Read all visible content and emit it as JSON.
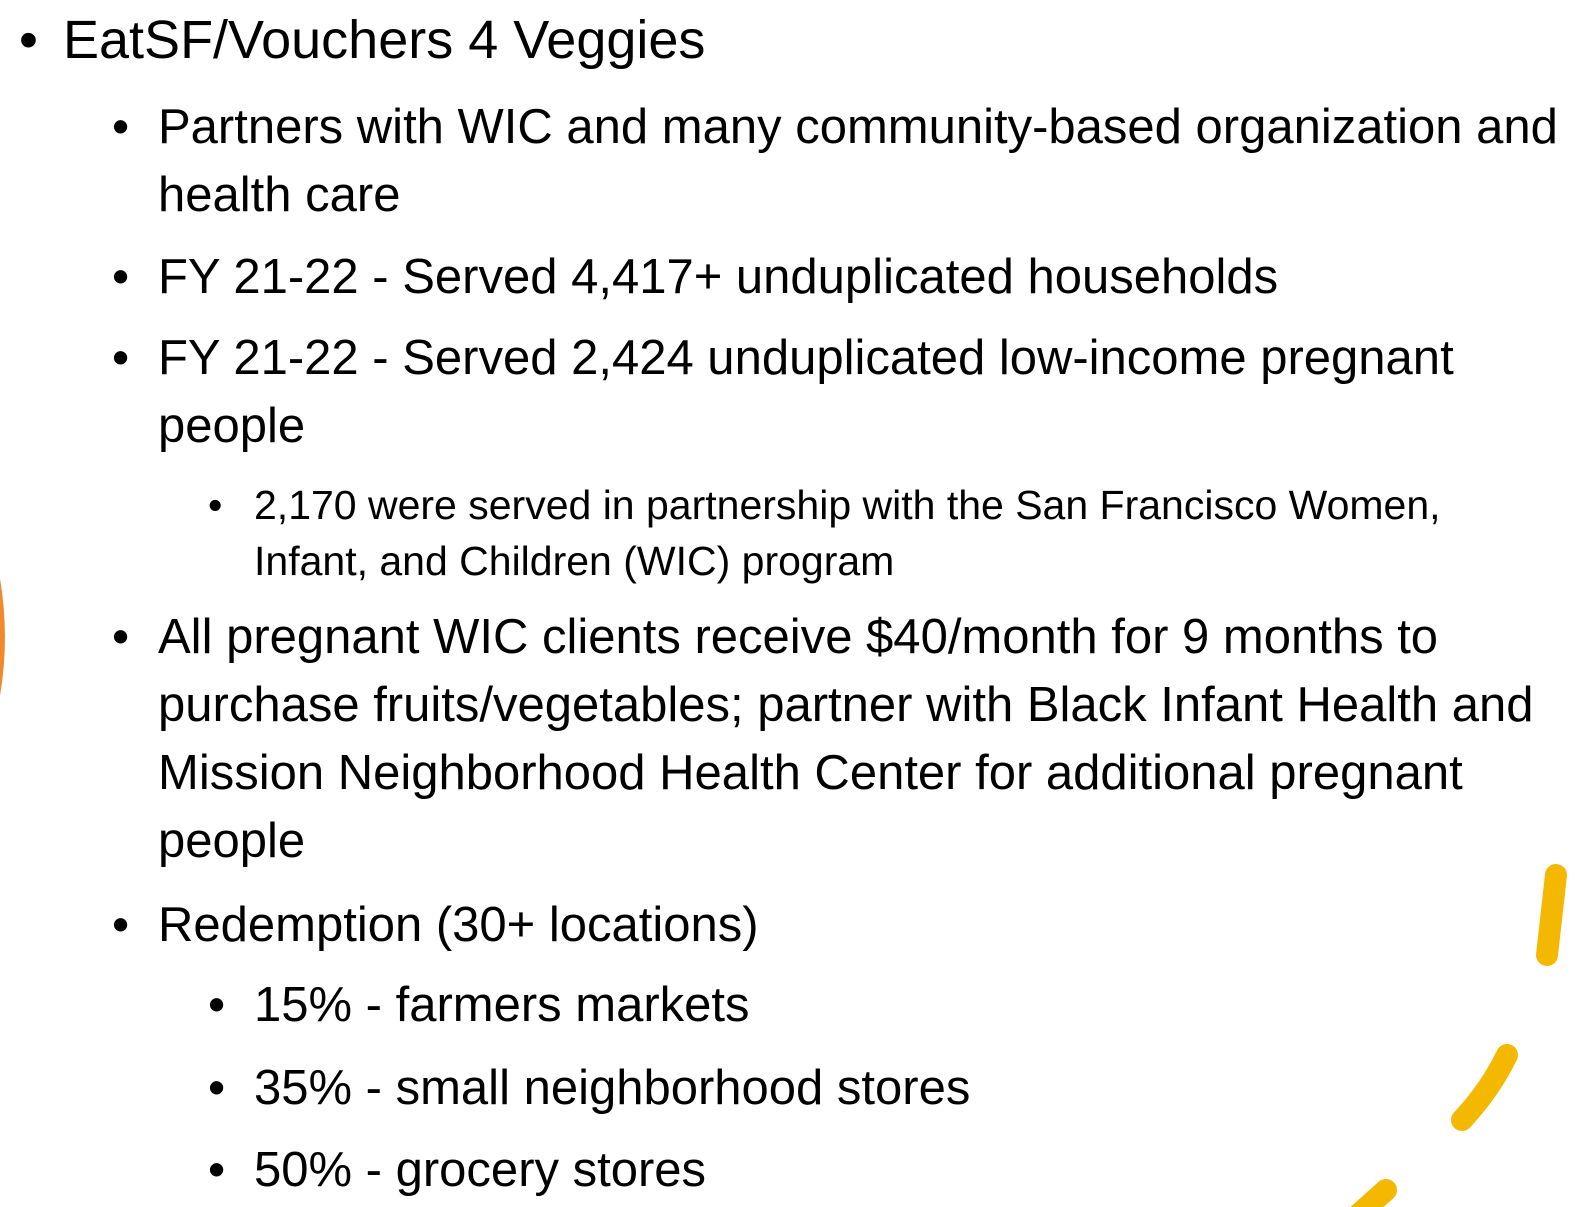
{
  "items": [
    {
      "level": 1,
      "text": "EatSF/Vouchers  4 Veggies"
    },
    {
      "level": 2,
      "text": "Partners with WIC and many community-based organization and health care"
    },
    {
      "level": 2,
      "text": "FY 21-22 - Served 4,417+ unduplicated households"
    },
    {
      "level": 2,
      "text": "FY 21-22 - Served 2,424 unduplicated low-income pregnant people"
    },
    {
      "level": 3,
      "text": "2,170 were served in partnership with the San Francisco Women, Infant, and Children (WIC) program"
    },
    {
      "level": 2,
      "text": "All pregnant WIC clients receive $40/month for 9 months to purchase fruits/vegetables; partner with Black Infant Health and Mission Neighborhood Health Center for additional pregnant people"
    },
    {
      "level": 2,
      "text": "Redemption (30+ locations)"
    },
    {
      "level": 3,
      "text": "15% - farmers markets"
    },
    {
      "level": 3,
      "text": "35% - small neighborhood stores"
    },
    {
      "level": 3,
      "text": "50% - grocery stores"
    }
  ]
}
